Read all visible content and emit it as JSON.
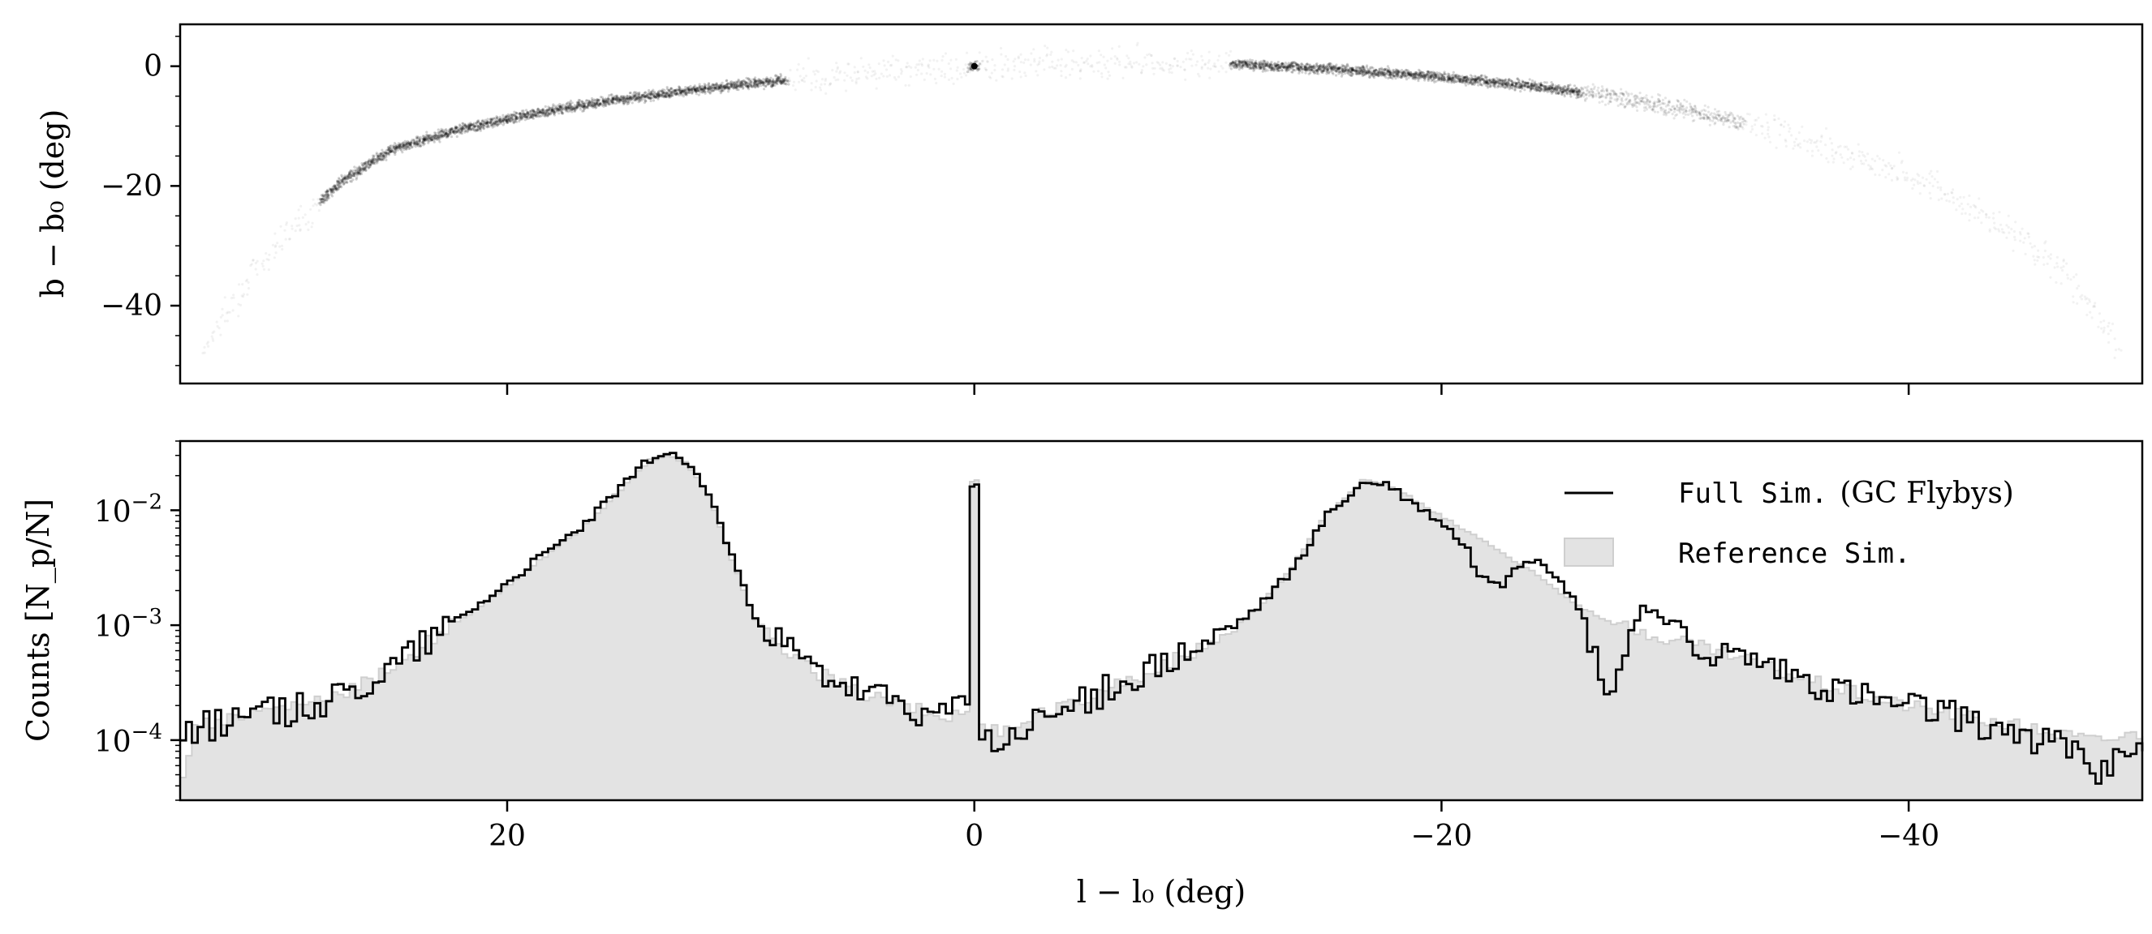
{
  "chart_data": [
    {
      "id": "top",
      "type": "scatter",
      "xlabel": "",
      "ylabel": "b − b₀ (deg)",
      "xlim": [
        -50,
        34
      ],
      "x_inverted": true,
      "ylim": [
        -53,
        7
      ],
      "yticks": [
        0,
        -20,
        -40
      ],
      "ytick_labels": [
        "0",
        "−20",
        "−40"
      ],
      "xticks": [
        20,
        0,
        -20,
        -40
      ],
      "xtick_labels_shown": false,
      "grid": false,
      "stream_track": [
        {
          "x": 33,
          "y": -47
        },
        {
          "x": 31,
          "y": -35
        },
        {
          "x": 29,
          "y": -26
        },
        {
          "x": 27,
          "y": -19
        },
        {
          "x": 25,
          "y": -14
        },
        {
          "x": 22,
          "y": -10.5
        },
        {
          "x": 19,
          "y": -8
        },
        {
          "x": 16,
          "y": -6
        },
        {
          "x": 13,
          "y": -4.5
        },
        {
          "x": 10,
          "y": -3
        },
        {
          "x": 6,
          "y": -1.7
        },
        {
          "x": 3,
          "y": -0.7
        },
        {
          "x": 0,
          "y": 0
        },
        {
          "x": -3,
          "y": 0.4
        },
        {
          "x": -6,
          "y": 0.5
        },
        {
          "x": -9,
          "y": 0.5
        },
        {
          "x": -12,
          "y": 0.2
        },
        {
          "x": -15,
          "y": -0.4
        },
        {
          "x": -18,
          "y": -1.2
        },
        {
          "x": -21,
          "y": -2.2
        },
        {
          "x": -24,
          "y": -3.4
        },
        {
          "x": -27,
          "y": -4.8
        },
        {
          "x": -30,
          "y": -7
        },
        {
          "x": -33,
          "y": -9.5
        },
        {
          "x": -36,
          "y": -13
        },
        {
          "x": -39,
          "y": -17
        },
        {
          "x": -42,
          "y": -22
        },
        {
          "x": -45,
          "y": -29
        },
        {
          "x": -47,
          "y": -36
        },
        {
          "x": -49,
          "y": -47
        }
      ],
      "dense_segments": [
        {
          "x_from": 28,
          "x_to": 8,
          "level": "high"
        },
        {
          "x_from": -11,
          "x_to": -26,
          "level": "high"
        },
        {
          "x_from": -26,
          "x_to": -33,
          "level": "medium"
        },
        {
          "x_from": 0.2,
          "x_to": -0.2,
          "level": "high"
        }
      ],
      "point_color": "#000000"
    },
    {
      "id": "bottom",
      "type": "area",
      "scale": "log",
      "xlabel": "l − l₀ (deg)",
      "ylabel": "Counts [N_p/N]",
      "xlim": [
        -50,
        34
      ],
      "x_inverted": true,
      "ylim": [
        3e-05,
        0.04
      ],
      "xticks": [
        20,
        0,
        -20,
        -40
      ],
      "xtick_labels": [
        "20",
        "0",
        "−20",
        "−40"
      ],
      "yticks": [
        0.0001,
        0.001,
        0.01
      ],
      "ytick_base": "10",
      "ytick_exponents": [
        "−4",
        "−3",
        "−2"
      ],
      "grid": false,
      "legend_position": "top-right",
      "series": [
        {
          "name_mono": "Full Sim.",
          "name_serif": "(GC Flybys)",
          "style": "step-line",
          "color": "#000000",
          "points": [
            {
              "x": 34,
              "y": 0.00012
            },
            {
              "x": 31,
              "y": 0.00016
            },
            {
              "x": 29,
              "y": 0.00019
            },
            {
              "x": 27,
              "y": 0.00025
            },
            {
              "x": 25,
              "y": 0.00045
            },
            {
              "x": 23,
              "y": 0.0009
            },
            {
              "x": 21,
              "y": 0.0017
            },
            {
              "x": 19,
              "y": 0.0035
            },
            {
              "x": 17,
              "y": 0.007
            },
            {
              "x": 15.5,
              "y": 0.014
            },
            {
              "x": 14,
              "y": 0.028
            },
            {
              "x": 13.3,
              "y": 0.031
            },
            {
              "x": 12.5,
              "y": 0.027
            },
            {
              "x": 11.5,
              "y": 0.014
            },
            {
              "x": 10.5,
              "y": 0.004
            },
            {
              "x": 9.5,
              "y": 0.0012
            },
            {
              "x": 8.5,
              "y": 0.0007
            },
            {
              "x": 7,
              "y": 0.0004
            },
            {
              "x": 5,
              "y": 0.00025
            },
            {
              "x": 3,
              "y": 0.0002
            },
            {
              "x": 1.5,
              "y": 0.00015
            },
            {
              "x": 0.4,
              "y": 0.00022
            },
            {
              "x": 0.2,
              "y": 0.017
            },
            {
              "x": 0,
              "y": 0.017
            },
            {
              "x": -0.2,
              "y": 0.0001
            },
            {
              "x": -1,
              "y": 9e-05
            },
            {
              "x": -2.5,
              "y": 0.00014
            },
            {
              "x": -4,
              "y": 0.0002
            },
            {
              "x": -6,
              "y": 0.0003
            },
            {
              "x": -8,
              "y": 0.00045
            },
            {
              "x": -10,
              "y": 0.0007
            },
            {
              "x": -12,
              "y": 0.0014
            },
            {
              "x": -13.5,
              "y": 0.003
            },
            {
              "x": -15,
              "y": 0.009
            },
            {
              "x": -16.5,
              "y": 0.017
            },
            {
              "x": -17.5,
              "y": 0.017
            },
            {
              "x": -18.5,
              "y": 0.012
            },
            {
              "x": -20,
              "y": 0.0075
            },
            {
              "x": -21,
              "y": 0.0045
            },
            {
              "x": -21.5,
              "y": 0.0026
            },
            {
              "x": -22.5,
              "y": 0.0023
            },
            {
              "x": -23,
              "y": 0.0033
            },
            {
              "x": -24,
              "y": 0.0038
            },
            {
              "x": -25,
              "y": 0.0025
            },
            {
              "x": -26,
              "y": 0.0011
            },
            {
              "x": -26.7,
              "y": 0.00035
            },
            {
              "x": -27.2,
              "y": 0.00028
            },
            {
              "x": -28,
              "y": 0.0008
            },
            {
              "x": -28.5,
              "y": 0.0015
            },
            {
              "x": -29.5,
              "y": 0.0011
            },
            {
              "x": -30.5,
              "y": 0.0006
            },
            {
              "x": -33,
              "y": 0.0005
            },
            {
              "x": -36,
              "y": 0.0003
            },
            {
              "x": -39,
              "y": 0.0002
            },
            {
              "x": -42,
              "y": 0.00016
            },
            {
              "x": -45,
              "y": 0.00011
            },
            {
              "x": -47,
              "y": 8e-05
            },
            {
              "x": -48,
              "y": 5e-05
            },
            {
              "x": -49,
              "y": 9e-05
            },
            {
              "x": -50,
              "y": 8e-05
            }
          ]
        },
        {
          "name_mono": "Reference Sim.",
          "name_serif": "",
          "style": "filled-step",
          "color": "#e3e3e3",
          "edge_color": "#cfcfcf",
          "points": [
            {
              "x": 34,
              "y": 5e-05
            },
            {
              "x": 33.5,
              "y": 0.00013
            },
            {
              "x": 31,
              "y": 0.00017
            },
            {
              "x": 29,
              "y": 0.0002
            },
            {
              "x": 27,
              "y": 0.00026
            },
            {
              "x": 25,
              "y": 0.00043
            },
            {
              "x": 23,
              "y": 0.00085
            },
            {
              "x": 21,
              "y": 0.0016
            },
            {
              "x": 19,
              "y": 0.0033
            },
            {
              "x": 17,
              "y": 0.0068
            },
            {
              "x": 15.5,
              "y": 0.0135
            },
            {
              "x": 14,
              "y": 0.027
            },
            {
              "x": 13.3,
              "y": 0.03
            },
            {
              "x": 12.5,
              "y": 0.026
            },
            {
              "x": 11.5,
              "y": 0.0135
            },
            {
              "x": 10.5,
              "y": 0.0038
            },
            {
              "x": 9.5,
              "y": 0.0011
            },
            {
              "x": 8.5,
              "y": 0.00065
            },
            {
              "x": 7,
              "y": 0.0004
            },
            {
              "x": 5,
              "y": 0.00026
            },
            {
              "x": 3,
              "y": 0.0002
            },
            {
              "x": 1.5,
              "y": 0.00016
            },
            {
              "x": 0.4,
              "y": 0.00018
            },
            {
              "x": 0.2,
              "y": 0.018
            },
            {
              "x": 0,
              "y": 0.018
            },
            {
              "x": -0.2,
              "y": 0.00012
            },
            {
              "x": -1,
              "y": 0.00012
            },
            {
              "x": -2.5,
              "y": 0.00016
            },
            {
              "x": -4,
              "y": 0.00021
            },
            {
              "x": -6,
              "y": 0.0003
            },
            {
              "x": -8,
              "y": 0.00045
            },
            {
              "x": -10,
              "y": 0.0007
            },
            {
              "x": -12,
              "y": 0.0014
            },
            {
              "x": -13.5,
              "y": 0.0032
            },
            {
              "x": -15,
              "y": 0.0095
            },
            {
              "x": -16.5,
              "y": 0.018
            },
            {
              "x": -17.5,
              "y": 0.017
            },
            {
              "x": -18.5,
              "y": 0.013
            },
            {
              "x": -20,
              "y": 0.0085
            },
            {
              "x": -21,
              "y": 0.0065
            },
            {
              "x": -22,
              "y": 0.005
            },
            {
              "x": -23,
              "y": 0.0036
            },
            {
              "x": -24,
              "y": 0.0027
            },
            {
              "x": -25,
              "y": 0.0019
            },
            {
              "x": -26,
              "y": 0.0014
            },
            {
              "x": -27,
              "y": 0.0011
            },
            {
              "x": -28,
              "y": 0.0009
            },
            {
              "x": -29,
              "y": 0.0008
            },
            {
              "x": -30.5,
              "y": 0.0007
            },
            {
              "x": -33,
              "y": 0.0005
            },
            {
              "x": -36,
              "y": 0.00032
            },
            {
              "x": -39,
              "y": 0.00022
            },
            {
              "x": -42,
              "y": 0.00017
            },
            {
              "x": -45,
              "y": 0.00013
            },
            {
              "x": -48,
              "y": 0.0001
            },
            {
              "x": -50,
              "y": 0.00012
            },
            {
              "x": -50.01,
              "y": 3e-05
            }
          ]
        }
      ]
    }
  ]
}
